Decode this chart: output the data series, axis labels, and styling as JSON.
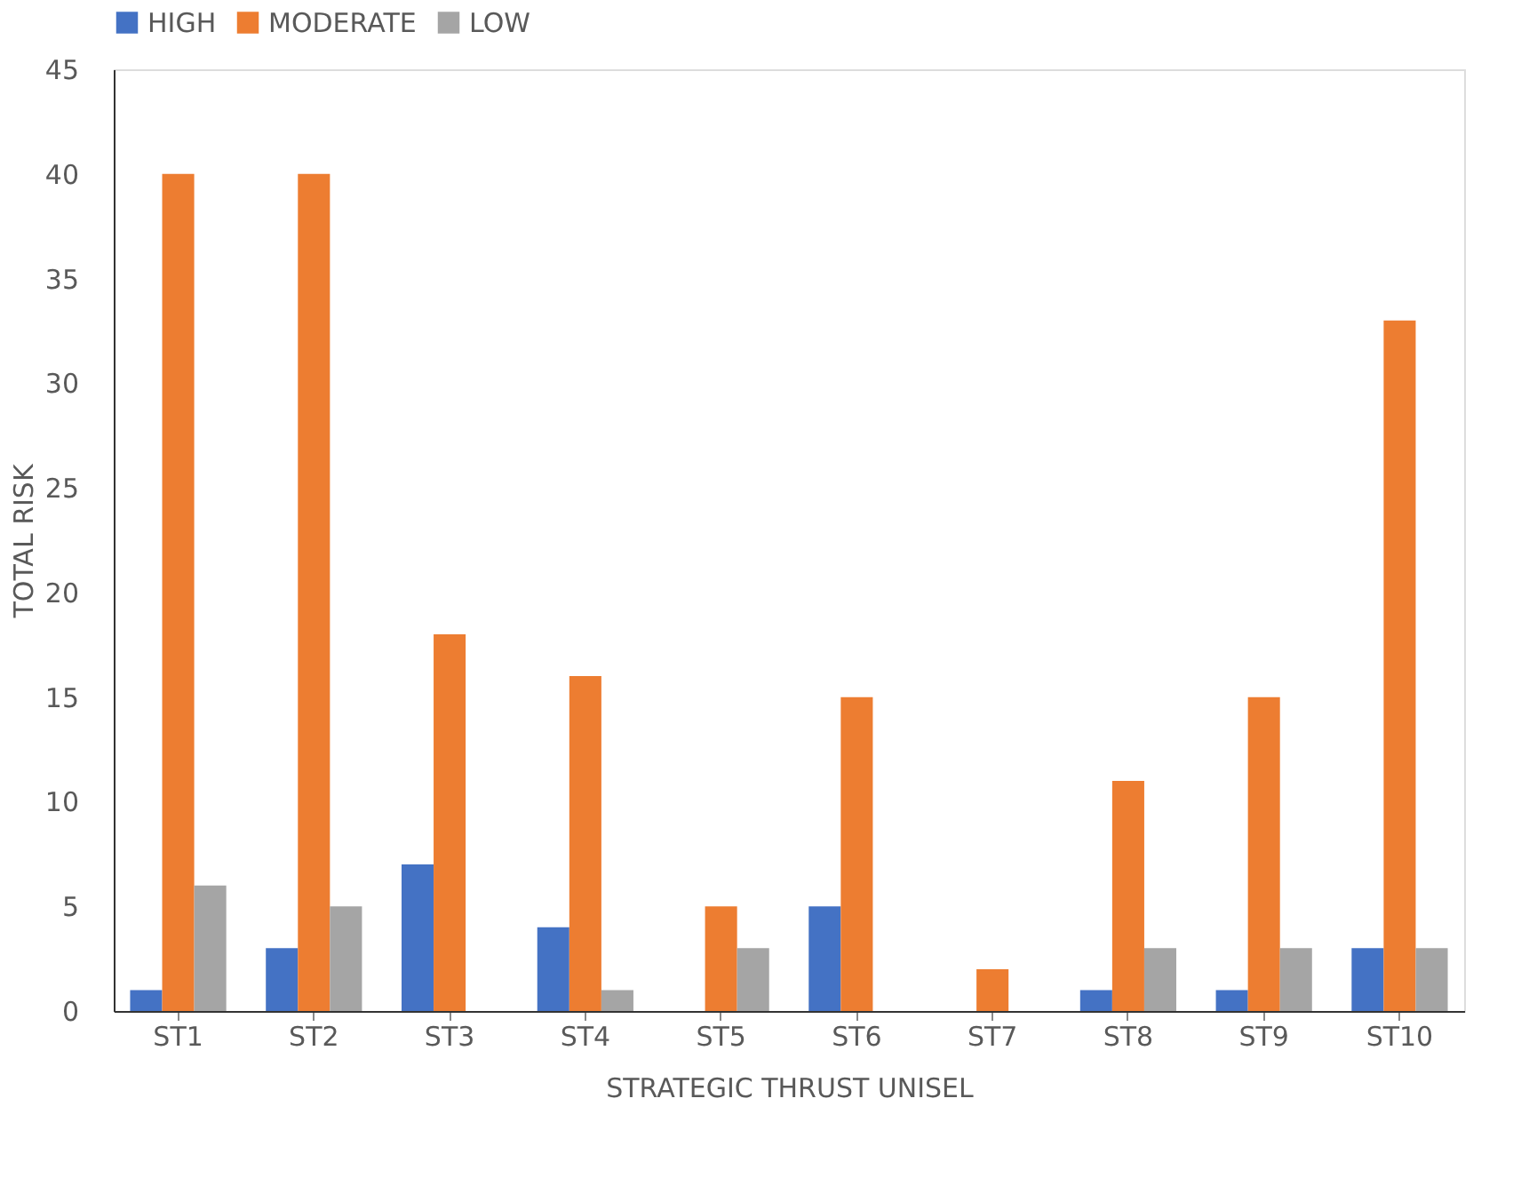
{
  "chart_data": {
    "type": "bar",
    "xlabel": "STRATEGIC THRUST UNISEL",
    "ylabel": "TOTAL RISK",
    "categories": [
      "ST1",
      "ST2",
      "ST3",
      "ST4",
      "ST5",
      "ST6",
      "ST7",
      "ST8",
      "ST9",
      "ST10"
    ],
    "series": [
      {
        "name": "HIGH",
        "color": "#4472c4",
        "values": [
          1,
          3,
          7,
          4,
          0,
          5,
          0,
          1,
          1,
          3
        ]
      },
      {
        "name": "MODERATE",
        "color": "#ed7d31",
        "values": [
          40,
          40,
          18,
          16,
          5,
          15,
          2,
          11,
          15,
          33
        ]
      },
      {
        "name": "LOW",
        "color": "#a5a5a5",
        "values": [
          6,
          5,
          0,
          1,
          3,
          0,
          0,
          3,
          3,
          3
        ]
      }
    ],
    "ylim": [
      0,
      45
    ],
    "yticks": [
      0,
      5,
      10,
      15,
      20,
      25,
      30,
      35,
      40,
      45
    ],
    "grid": false,
    "legend": "top"
  }
}
